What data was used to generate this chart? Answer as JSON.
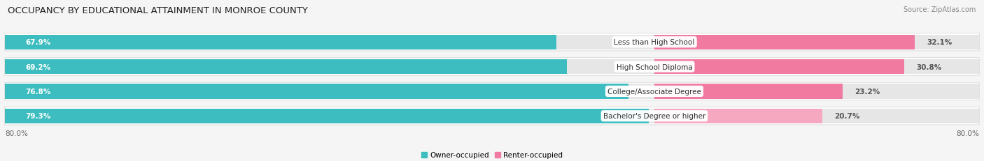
{
  "title": "OCCUPANCY BY EDUCATIONAL ATTAINMENT IN MONROE COUNTY",
  "source": "Source: ZipAtlas.com",
  "categories": [
    "Less than High School",
    "High School Diploma",
    "College/Associate Degree",
    "Bachelor's Degree or higher"
  ],
  "owner_values": [
    67.9,
    69.2,
    76.8,
    79.3
  ],
  "renter_values": [
    32.1,
    30.8,
    23.2,
    20.7
  ],
  "owner_color": "#3dbdc0",
  "renter_color": "#f07aa0",
  "renter_color_light": "#f5a8c0",
  "bar_bg_color": "#e6e6e6",
  "row_bg_color": "#efefef",
  "owner_label": "Owner-occupied",
  "renter_label": "Renter-occupied",
  "x_left_label": "80.0%",
  "x_right_label": "80.0%",
  "title_fontsize": 9.5,
  "source_fontsize": 7.0,
  "bar_label_fontsize": 7.5,
  "category_fontsize": 7.5,
  "axis_label_fontsize": 7.5,
  "background_color": "#f5f5f5",
  "bar_height": 0.6,
  "max_val": 100.0,
  "owner_max": 80.0,
  "renter_max": 40.0
}
